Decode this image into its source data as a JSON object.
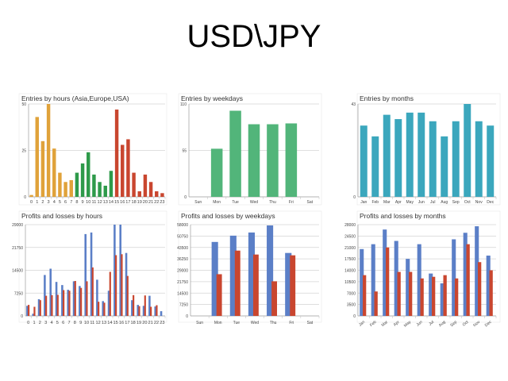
{
  "page": {
    "title": "USD\\JPY"
  },
  "colors": {
    "orange": "#e0a23a",
    "green": "#2e9a4a",
    "red": "#c9462f",
    "blue": "#5b7fc7",
    "teal": "#3ba7bd",
    "mint": "#52b57a"
  },
  "chart_data": [
    {
      "id": "entries-by-hours",
      "type": "bar",
      "title": "Entries by hours (Asia,Europe,USA)",
      "categories": [
        "0",
        "1",
        "2",
        "3",
        "4",
        "5",
        "6",
        "7",
        "8",
        "9",
        "10",
        "11",
        "12",
        "13",
        "14",
        "15",
        "16",
        "17",
        "18",
        "19",
        "20",
        "21",
        "22",
        "23"
      ],
      "values": [
        1,
        43,
        30,
        50,
        26,
        13,
        8,
        9,
        13,
        18,
        24,
        12,
        8,
        6,
        14,
        47,
        28,
        31,
        13,
        3,
        12,
        8,
        3,
        2
      ],
      "segments": [
        "Asia",
        "Asia",
        "Asia",
        "Asia",
        "Asia",
        "Asia",
        "Asia",
        "Asia",
        "Europe",
        "Europe",
        "Europe",
        "Europe",
        "Europe",
        "Europe",
        "Europe",
        "USA",
        "USA",
        "USA",
        "USA",
        "USA",
        "USA",
        "USA",
        "USA",
        "USA"
      ],
      "ylim": [
        0,
        50
      ],
      "yticks": [
        0,
        25,
        50
      ],
      "grid": true
    },
    {
      "id": "entries-by-weekdays",
      "type": "bar",
      "title": "Entries by weekdays",
      "categories": [
        "Sun",
        "Mon",
        "Tue",
        "Wed",
        "Thu",
        "Fri",
        "Sat"
      ],
      "values": [
        0,
        57,
        102,
        86,
        86,
        87,
        0
      ],
      "ylim": [
        0,
        110
      ],
      "yticks": [
        0,
        55,
        110
      ],
      "grid": true
    },
    {
      "id": "entries-by-months",
      "type": "bar",
      "title": "Entries by months",
      "categories": [
        "Jan",
        "Feb",
        "Mar",
        "Apr",
        "May",
        "Jun",
        "Jul",
        "Aug",
        "Sep",
        "Oct",
        "Nov",
        "Dec"
      ],
      "values": [
        33,
        28,
        38,
        36,
        39,
        39,
        35,
        28,
        35,
        43,
        35,
        33
      ],
      "ylim": [
        0,
        43
      ],
      "yticks": [
        0,
        43
      ],
      "grid": true
    },
    {
      "id": "profits-losses-by-hours",
      "type": "bar",
      "title": "Profits and losses by hours",
      "categories": [
        "0",
        "1",
        "2",
        "3",
        "4",
        "5",
        "6",
        "7",
        "8",
        "9",
        "10",
        "11",
        "12",
        "13",
        "14",
        "15",
        "16",
        "17",
        "18",
        "19",
        "20",
        "21",
        "22",
        "23"
      ],
      "series": [
        {
          "name": "Profits",
          "values": [
            3200,
            700,
            5300,
            13000,
            15000,
            10800,
            9800,
            8300,
            11000,
            9500,
            26000,
            26500,
            11500,
            4700,
            8000,
            29000,
            29000,
            20000,
            5000,
            3500,
            3200,
            6400,
            3000,
            1500
          ]
        },
        {
          "name": "Losses",
          "values": [
            3500,
            2900,
            5000,
            6400,
            6600,
            6700,
            8200,
            8000,
            11100,
            8900,
            11000,
            15400,
            4500,
            4200,
            14000,
            19300,
            19600,
            12700,
            6600,
            3100,
            6500,
            2900,
            3400,
            0
          ]
        }
      ],
      "ylim": [
        0,
        29000
      ],
      "yticks": [
        0,
        7250,
        14500,
        21750,
        29000
      ],
      "grid": true
    },
    {
      "id": "profits-losses-by-weekdays",
      "type": "bar",
      "title": "Profits and losses by weekdays",
      "categories": [
        "Sun",
        "Mon",
        "Tue",
        "Wed",
        "Thu",
        "Fri",
        "Sat"
      ],
      "series": [
        {
          "name": "Profits",
          "values": [
            0,
            47000,
            51000,
            53000,
            57500,
            40000,
            0
          ]
        },
        {
          "name": "Losses",
          "values": [
            0,
            26500,
            41500,
            39000,
            22000,
            38500,
            0
          ]
        }
      ],
      "ylim": [
        0,
        58000
      ],
      "yticks": [
        0,
        7250,
        14500,
        21750,
        29000,
        36250,
        43500,
        50750,
        58000
      ],
      "grid": true
    },
    {
      "id": "profits-losses-by-months",
      "type": "bar",
      "title": "Profits and losses by months",
      "categories": [
        "Jan",
        "Feb",
        "Mar",
        "Apr",
        "May",
        "Jun",
        "Jul",
        "Aug",
        "Sep",
        "Oct",
        "Nov",
        "Dec"
      ],
      "series": [
        {
          "name": "Profits",
          "values": [
            20500,
            22000,
            26500,
            23000,
            17500,
            22000,
            13000,
            10000,
            23500,
            25500,
            27500,
            18500
          ]
        },
        {
          "name": "Losses",
          "values": [
            12500,
            7500,
            21000,
            13500,
            13500,
            11500,
            12000,
            12500,
            11500,
            22000,
            16500,
            14000
          ]
        }
      ],
      "ylim": [
        0,
        28000
      ],
      "yticks": [
        0,
        3500,
        7000,
        10500,
        14000,
        17500,
        21000,
        24500,
        28000
      ],
      "grid": true
    }
  ]
}
